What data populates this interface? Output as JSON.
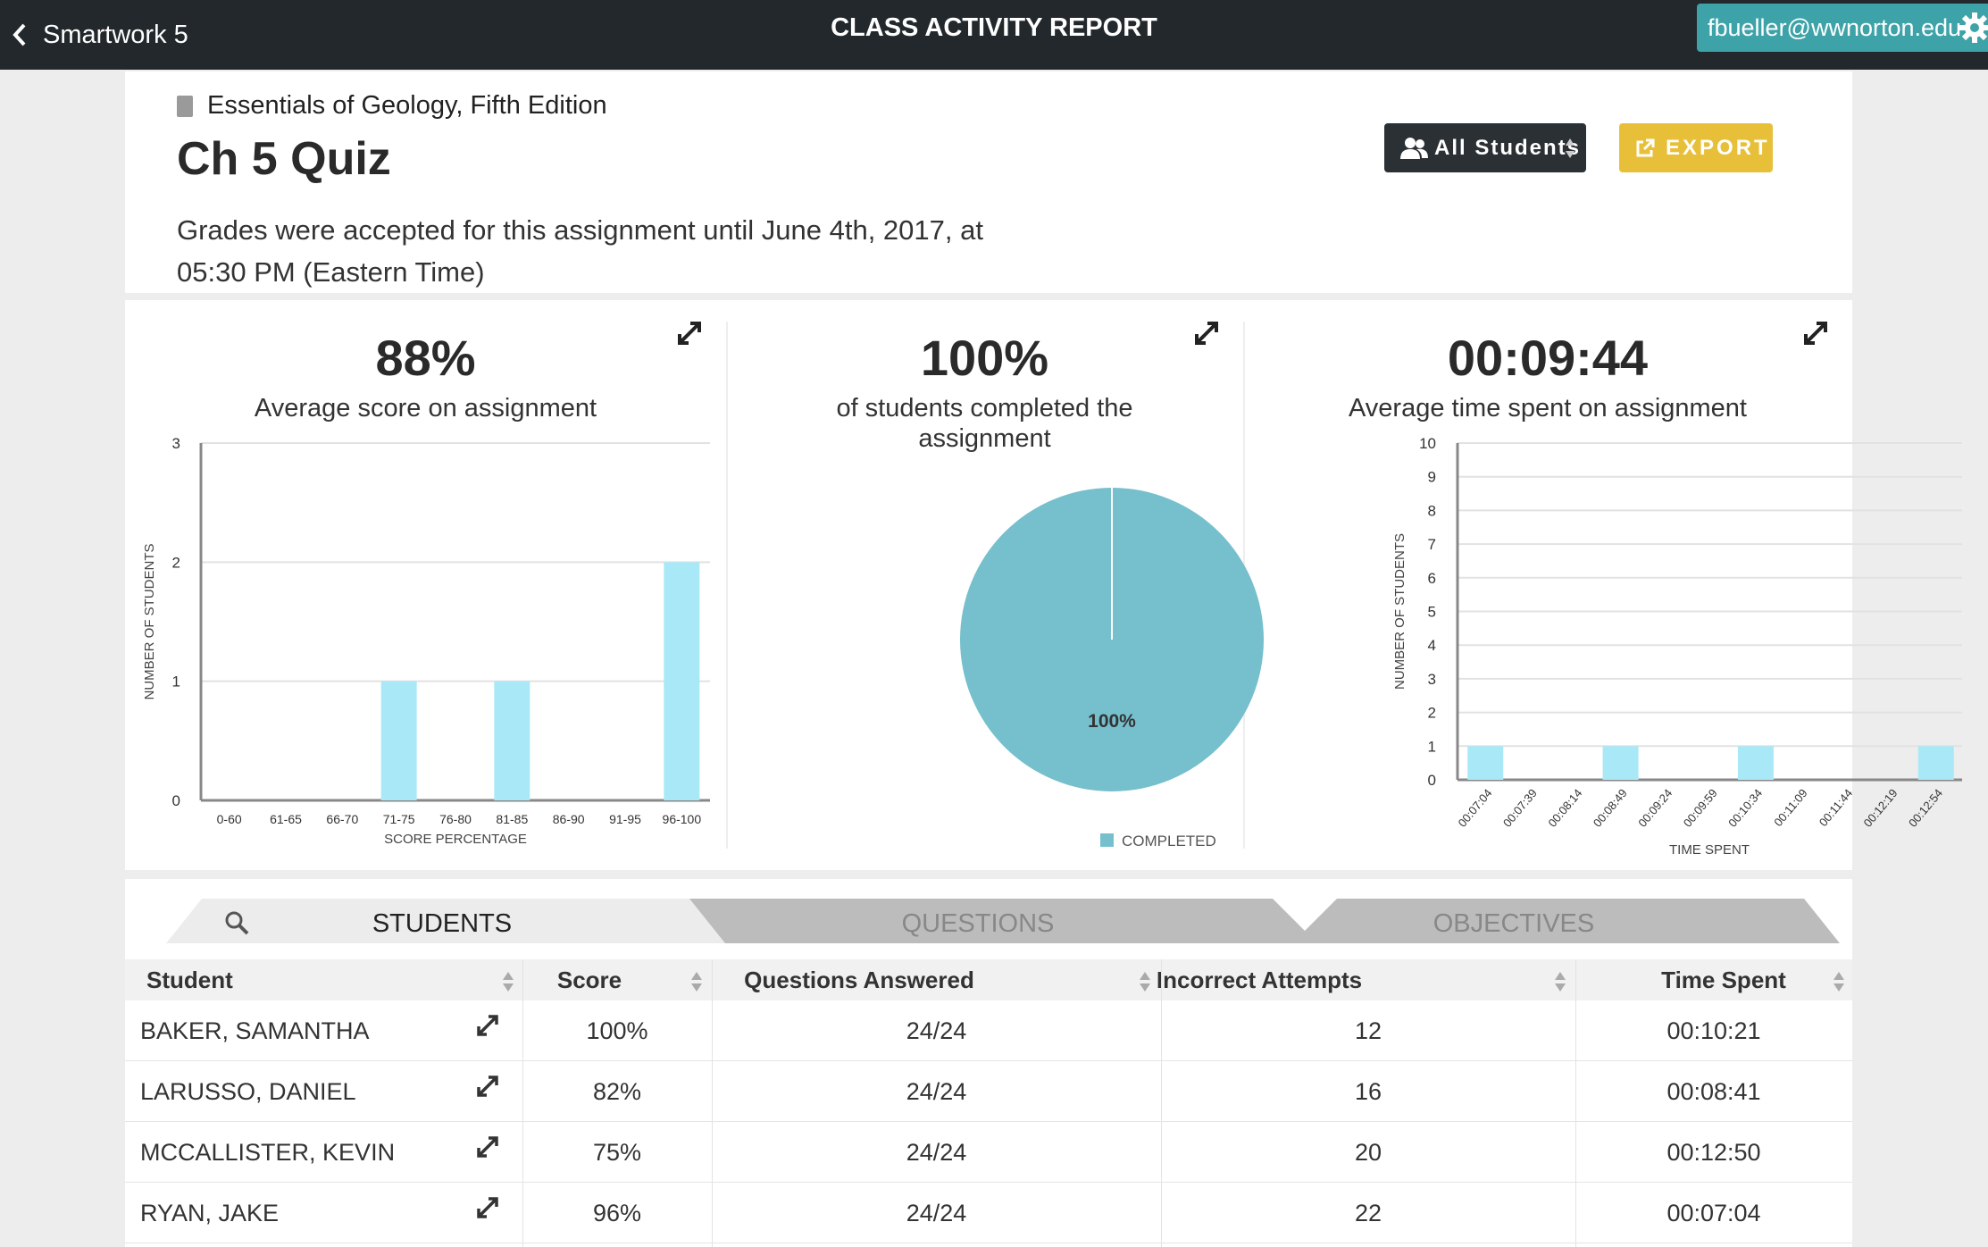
{
  "topbar": {
    "back_label": "Smartwork 5",
    "title": "CLASS ACTIVITY REPORT",
    "user_email": "fbueller@wwnorton.edu"
  },
  "header": {
    "book_title": "Essentials of Geology, Fifth Edition",
    "assignment_title": "Ch 5 Quiz",
    "grades_note": "Grades were accepted for this assignment until June 4th, 2017, at 05:30 PM (Eastern Time)",
    "filter_label": "All Students",
    "export_label": "EXPORT"
  },
  "colors": {
    "accent": "#3ea3a8",
    "bar": "#a9e9f7",
    "pie": "#76bfcd",
    "export": "#e8bf39",
    "topbar": "#22282c"
  },
  "stats": {
    "score": {
      "value": "88%",
      "label": "Average score on assignment"
    },
    "completion": {
      "value": "100%",
      "label": "of students completed the assignment"
    },
    "time": {
      "value": "00:09:44",
      "label": "Average time spent on assignment"
    }
  },
  "chart_data": [
    {
      "type": "bar",
      "title": "",
      "xlabel": "SCORE PERCENTAGE",
      "ylabel": "NUMBER OF STUDENTS",
      "categories": [
        "0-60",
        "61-65",
        "66-70",
        "71-75",
        "76-80",
        "81-85",
        "86-90",
        "91-95",
        "96-100"
      ],
      "values": [
        0,
        0,
        0,
        1,
        0,
        1,
        0,
        0,
        2
      ],
      "ylim": [
        0,
        3
      ],
      "yticks": [
        0,
        1,
        2,
        3
      ],
      "grid": true
    },
    {
      "type": "pie",
      "title": "",
      "slices": [
        {
          "label": "COMPLETED",
          "value": 100,
          "text": "100%"
        }
      ],
      "legend": "bottom"
    },
    {
      "type": "bar",
      "title": "",
      "xlabel": "TIME SPENT",
      "ylabel": "NUMBER OF STUDENTS",
      "categories": [
        "00:07:04",
        "00:07:39",
        "00:08:14",
        "00:08:49",
        "00:09:24",
        "00:09:59",
        "00:10:34",
        "00:11:09",
        "00:11:44",
        "00:12:19",
        "00:12:54"
      ],
      "values": [
        1,
        0,
        0,
        1,
        0,
        0,
        1,
        0,
        0,
        0,
        1
      ],
      "ylim": [
        0,
        10
      ],
      "yticks": [
        0,
        1,
        2,
        3,
        4,
        5,
        6,
        7,
        8,
        9,
        10
      ],
      "grid": true
    }
  ],
  "tabs": [
    {
      "label": "STUDENTS",
      "active": true
    },
    {
      "label": "QUESTIONS",
      "active": false
    },
    {
      "label": "OBJECTIVES",
      "active": false
    }
  ],
  "table": {
    "columns": [
      "Student",
      "Score",
      "Questions Answered",
      "Incorrect Attempts",
      "Time Spent"
    ],
    "rows": [
      {
        "student": "BAKER, SAMANTHA",
        "score": "100%",
        "answered": "24/24",
        "incorrect": "12",
        "time": "00:10:21"
      },
      {
        "student": "LARUSSO, DANIEL",
        "score": "82%",
        "answered": "24/24",
        "incorrect": "16",
        "time": "00:08:41"
      },
      {
        "student": "MCCALLISTER, KEVIN",
        "score": "75%",
        "answered": "24/24",
        "incorrect": "20",
        "time": "00:12:50"
      },
      {
        "student": "RYAN, JAKE",
        "score": "96%",
        "answered": "24/24",
        "incorrect": "22",
        "time": "00:07:04"
      }
    ]
  }
}
